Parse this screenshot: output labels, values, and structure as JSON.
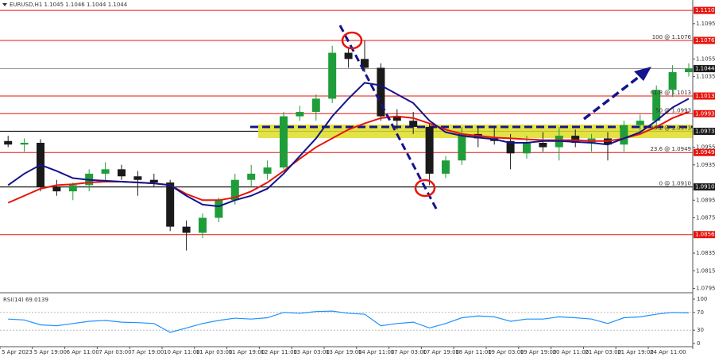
{
  "chart_data": {
    "type": "candlestick",
    "title": "EURUSD,H1  1.1045 1.1046 1.1044 1.1044",
    "up_color": "#1f9d3a",
    "down_color": "#1a1a1a",
    "open": [
      1.0962,
      1.0958,
      1.096,
      1.091,
      1.0905,
      1.0912,
      1.0925,
      1.093,
      1.0922,
      1.0918,
      1.0915,
      1.0865,
      1.0858,
      1.0875,
      1.0895,
      1.0918,
      1.0925,
      1.0932,
      1.099,
      1.0995,
      1.101,
      1.1062,
      1.1055,
      1.1045,
      1.099,
      1.0985,
      1.0978,
      1.0925,
      1.094,
      1.097,
      1.0965,
      1.0962,
      1.0948,
      1.096,
      1.0955,
      1.0968,
      1.096,
      1.0965,
      1.0958,
      1.098,
      1.0985,
      1.102,
      1.104
    ],
    "high": [
      1.0968,
      1.0965,
      1.0964,
      1.0918,
      1.0915,
      1.093,
      1.0938,
      1.0935,
      1.0928,
      1.0925,
      1.0918,
      1.0872,
      1.088,
      1.0898,
      1.0925,
      1.0935,
      1.094,
      1.0995,
      1.1002,
      1.1015,
      1.107,
      1.1068,
      1.1076,
      1.105,
      1.0998,
      1.0995,
      1.0982,
      1.0945,
      1.0978,
      1.0978,
      1.0978,
      1.097,
      1.0968,
      1.0972,
      1.0978,
      1.0975,
      1.097,
      1.0972,
      1.0985,
      1.0992,
      1.1025,
      1.1048,
      1.105
    ],
    "low": [
      1.0955,
      1.095,
      1.0905,
      1.09,
      1.0895,
      1.0905,
      1.0915,
      1.0918,
      1.09,
      1.091,
      1.086,
      1.0838,
      1.0852,
      1.087,
      1.089,
      1.091,
      1.0918,
      1.093,
      1.0985,
      1.0985,
      1.1005,
      1.1045,
      1.104,
      1.0985,
      1.0975,
      1.097,
      1.0912,
      1.092,
      1.0935,
      1.0955,
      1.0958,
      1.093,
      1.0942,
      1.095,
      1.094,
      1.0955,
      1.095,
      1.094,
      1.095,
      1.097,
      1.0978,
      1.1012,
      1.1035
    ],
    "close": [
      1.0958,
      1.096,
      1.091,
      1.0905,
      1.0912,
      1.0925,
      1.093,
      1.0922,
      1.0918,
      1.0915,
      1.0865,
      1.0858,
      1.0875,
      1.0895,
      1.0918,
      1.0925,
      1.0932,
      1.099,
      1.0995,
      1.101,
      1.1062,
      1.1055,
      1.1045,
      1.099,
      1.0985,
      1.0978,
      1.0925,
      1.094,
      1.097,
      1.0965,
      1.0962,
      1.0948,
      1.096,
      1.0955,
      1.0968,
      1.096,
      1.0965,
      1.0958,
      1.098,
      1.0985,
      1.102,
      1.104,
      1.1044
    ],
    "series": [
      {
        "color": "#e8140c",
        "values": [
          1.0892,
          1.09,
          1.0908,
          1.0912,
          1.0913,
          1.0915,
          1.0916,
          1.0916,
          1.0915,
          1.0914,
          1.0912,
          1.0902,
          1.0895,
          1.0895,
          1.0898,
          1.0905,
          1.0915,
          1.0928,
          1.0942,
          1.0955,
          1.0965,
          1.0975,
          1.0982,
          1.0988,
          1.099,
          1.0988,
          1.0982,
          1.0975,
          1.097,
          1.0968,
          1.0966,
          1.0965,
          1.0964,
          1.0963,
          1.0963,
          1.0963,
          1.0962,
          1.0962,
          1.0965,
          1.097,
          1.0978,
          1.0988,
          1.0995
        ]
      },
      {
        "color": "#14148c",
        "values": [
          1.0912,
          1.0925,
          1.0935,
          1.0928,
          1.092,
          1.0918,
          1.0917,
          1.0916,
          1.0915,
          1.0914,
          1.0912,
          1.09,
          1.089,
          1.0888,
          1.0895,
          1.09,
          1.0908,
          1.0925,
          1.0945,
          1.0965,
          1.099,
          1.101,
          1.1028,
          1.1025,
          1.1015,
          1.1005,
          1.0985,
          1.0972,
          1.0968,
          1.0966,
          1.0964,
          1.096,
          1.096,
          1.0962,
          1.0962,
          1.0961,
          1.096,
          1.0958,
          1.0965,
          1.0972,
          1.0985,
          1.1,
          1.101
        ]
      }
    ],
    "ylim": [
      1.0791,
      1.112
    ],
    "yticks": [
      1.1095,
      1.1055,
      1.1035,
      1.0955,
      1.0935,
      1.0895,
      1.0875,
      1.0835,
      1.0815,
      1.0795
    ],
    "levels": [
      {
        "value": 1.111,
        "label": "1.1110",
        "color": "#e8140c"
      },
      {
        "value": 1.1076,
        "label": "1.1076",
        "color": "#e8140c",
        "fib": "100 @ 1.1076"
      },
      {
        "value": 1.1044,
        "label": "1.1044",
        "color": "#1a1a1a"
      },
      {
        "value": 1.1013,
        "label": "1.1013",
        "color": "#e8140c",
        "fib": "61.8 @ 1.1013"
      },
      {
        "value": 1.0993,
        "label": "1.0993",
        "color": "#e8140c",
        "fib": "50 @ 1.0993"
      },
      {
        "value": 1.0973,
        "label": "1.0973",
        "color": "#1a1a1a",
        "fib": "38.2 @ 1.0973"
      },
      {
        "value": 1.0949,
        "label": "1.0949",
        "color": "#e8140c",
        "fib": "23.6 @ 1.0949"
      },
      {
        "value": 1.091,
        "label": "1.0910",
        "color": "#1a1a1a",
        "fib": "0 @ 1.0910"
      },
      {
        "value": 1.0856,
        "label": "1.0856",
        "color": "#e8140c"
      }
    ],
    "xtick_labels": [
      "5 Apr 2023",
      "5 Apr 19:00",
      "6 Apr 11:00",
      "7 Apr 03:00",
      "7 Apr 19:00",
      "10 Apr 11:00",
      "11 Apr 03:00",
      "11 Apr 19:00",
      "12 Apr 11:00",
      "13 Apr 03:00",
      "13 Apr 19:00",
      "14 Apr 11:00",
      "17 Apr 03:00",
      "17 Apr 19:00",
      "18 Apr 11:00",
      "19 Apr 03:00",
      "19 Apr 19:00",
      "20 Apr 11:00",
      "21 Apr 03:00",
      "21 Apr 19:00",
      "24 Apr 11:00"
    ],
    "rsi": {
      "title": "RSI(14) 69.0139",
      "color": "#1e90ff",
      "values": [
        55,
        53,
        42,
        40,
        45,
        50,
        52,
        48,
        47,
        45,
        25,
        35,
        45,
        52,
        57,
        55,
        58,
        70,
        68,
        72,
        73,
        68,
        66,
        40,
        45,
        48,
        35,
        45,
        58,
        62,
        60,
        50,
        55,
        55,
        60,
        58,
        55,
        45,
        58,
        60,
        66,
        70,
        69
      ],
      "ylim": [
        0,
        100
      ],
      "yticks": [
        100,
        70,
        30,
        0
      ]
    }
  }
}
